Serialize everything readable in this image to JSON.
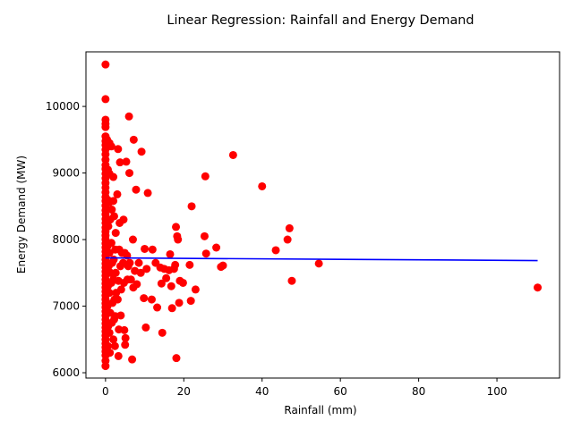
{
  "chart_data": {
    "type": "scatter",
    "title": "Linear Regression: Rainfall and Energy Demand",
    "xlabel": "Rainfall (mm)",
    "ylabel": "Energy Demand (MW)",
    "xlim": [
      -5,
      116
    ],
    "ylim": [
      5920,
      10820
    ],
    "xticks": [
      0,
      20,
      40,
      60,
      80,
      100
    ],
    "yticks": [
      6000,
      7000,
      8000,
      9000,
      10000
    ],
    "grid": false,
    "legend": "none",
    "colors": {
      "points": "#ff0000",
      "regression_line": "#0000ff"
    },
    "regression_line": {
      "x": [
        0,
        110.4
      ],
      "y": [
        7725,
        7685
      ]
    },
    "points": [
      [
        0,
        10630
      ],
      [
        0,
        10110
      ],
      [
        0,
        9800
      ],
      [
        0,
        9740
      ],
      [
        0,
        9690
      ],
      [
        0,
        9550
      ],
      [
        0,
        9480
      ],
      [
        0,
        9420
      ],
      [
        0,
        9350
      ],
      [
        0,
        9280
      ],
      [
        0,
        9200
      ],
      [
        0,
        9120
      ],
      [
        0,
        9060
      ],
      [
        0,
        8990
      ],
      [
        0,
        8920
      ],
      [
        0,
        8850
      ],
      [
        0,
        8780
      ],
      [
        0,
        8710
      ],
      [
        0,
        8640
      ],
      [
        0,
        8580
      ],
      [
        0,
        8510
      ],
      [
        0,
        8440
      ],
      [
        0,
        8380
      ],
      [
        0,
        8310
      ],
      [
        0,
        8250
      ],
      [
        0,
        8180
      ],
      [
        0,
        8120
      ],
      [
        0,
        8060
      ],
      [
        0,
        8000
      ],
      [
        0,
        7940
      ],
      [
        0,
        7880
      ],
      [
        0,
        7820
      ],
      [
        0,
        7760
      ],
      [
        0,
        7700
      ],
      [
        0,
        7640
      ],
      [
        0,
        7580
      ],
      [
        0,
        7520
      ],
      [
        0,
        7460
      ],
      [
        0,
        7400
      ],
      [
        0,
        7340
      ],
      [
        0,
        7280
      ],
      [
        0,
        7220
      ],
      [
        0,
        7160
      ],
      [
        0,
        7100
      ],
      [
        0,
        7040
      ],
      [
        0,
        6980
      ],
      [
        0,
        6920
      ],
      [
        0,
        6860
      ],
      [
        0,
        6800
      ],
      [
        0,
        6740
      ],
      [
        0,
        6680
      ],
      [
        0,
        6620
      ],
      [
        0,
        6560
      ],
      [
        0,
        6500
      ],
      [
        0,
        6440
      ],
      [
        0,
        6380
      ],
      [
        0,
        6320
      ],
      [
        0,
        6260
      ],
      [
        0,
        6180
      ],
      [
        0,
        6100
      ],
      [
        0.4,
        9500
      ],
      [
        0.6,
        9050
      ],
      [
        0.5,
        8600
      ],
      [
        0.7,
        8200
      ],
      [
        0.5,
        7900
      ],
      [
        0.8,
        7600
      ],
      [
        0.6,
        7300
      ],
      [
        0.5,
        7000
      ],
      [
        0.7,
        6700
      ],
      [
        0.6,
        6400
      ],
      [
        1,
        9450
      ],
      [
        1,
        8990
      ],
      [
        1,
        8560
      ],
      [
        1.2,
        8300
      ],
      [
        1,
        7800
      ],
      [
        1.3,
        7500
      ],
      [
        1,
        7200
      ],
      [
        1.2,
        6900
      ],
      [
        1,
        6600
      ],
      [
        1.1,
        6300
      ],
      [
        1.5,
        9400
      ],
      [
        1.6,
        8450
      ],
      [
        1.5,
        7950
      ],
      [
        1.7,
        7650
      ],
      [
        1.5,
        7350
      ],
      [
        1.8,
        7050
      ],
      [
        1.6,
        6750
      ],
      [
        2,
        8940
      ],
      [
        2,
        8580
      ],
      [
        2.2,
        8350
      ],
      [
        2.1,
        7700
      ],
      [
        2,
        7400
      ],
      [
        2.3,
        7100
      ],
      [
        2.2,
        6800
      ],
      [
        2,
        6500
      ],
      [
        2.5,
        7850
      ],
      [
        2.6,
        7500
      ],
      [
        2.7,
        7200
      ],
      [
        2.5,
        6850
      ],
      [
        2.4,
        6400
      ],
      [
        2.6,
        8100
      ],
      [
        3,
        8680
      ],
      [
        3.2,
        9360
      ],
      [
        3.3,
        7380
      ],
      [
        3.1,
        7100
      ],
      [
        3.5,
        7850
      ],
      [
        3.4,
        6650
      ],
      [
        3.6,
        8250
      ],
      [
        3.3,
        6250
      ],
      [
        3.7,
        9160
      ],
      [
        3.8,
        7600
      ],
      [
        3.9,
        6860
      ],
      [
        4.0,
        7250
      ],
      [
        4.2,
        7800
      ],
      [
        4.5,
        7650
      ],
      [
        4.6,
        8300
      ],
      [
        4.7,
        7350
      ],
      [
        4.8,
        6640
      ],
      [
        4.9,
        7800
      ],
      [
        5.0,
        6420
      ],
      [
        5.1,
        6520
      ],
      [
        5.3,
        9170
      ],
      [
        5.5,
        7760
      ],
      [
        5.6,
        7400
      ],
      [
        5.8,
        7600
      ],
      [
        6.0,
        9850
      ],
      [
        6.1,
        9000
      ],
      [
        6.2,
        7650
      ],
      [
        6.5,
        7400
      ],
      [
        6.8,
        6200
      ],
      [
        7.0,
        8000
      ],
      [
        7.1,
        7280
      ],
      [
        7.2,
        9500
      ],
      [
        7.5,
        7530
      ],
      [
        7.8,
        8750
      ],
      [
        8.0,
        7330
      ],
      [
        8.5,
        7650
      ],
      [
        9.0,
        7500
      ],
      [
        9.2,
        9320
      ],
      [
        9.8,
        7120
      ],
      [
        10.0,
        7860
      ],
      [
        10.3,
        6680
      ],
      [
        10.5,
        7560
      ],
      [
        10.8,
        8700
      ],
      [
        11.8,
        7100
      ],
      [
        12.0,
        7850
      ],
      [
        12.8,
        7650
      ],
      [
        13.2,
        6980
      ],
      [
        14.0,
        7580
      ],
      [
        14.3,
        7340
      ],
      [
        14.5,
        6600
      ],
      [
        15.0,
        7560
      ],
      [
        15.5,
        7420
      ],
      [
        16.2,
        7540
      ],
      [
        16.5,
        7780
      ],
      [
        16.8,
        7300
      ],
      [
        17.0,
        6970
      ],
      [
        17.5,
        7560
      ],
      [
        17.8,
        7620
      ],
      [
        18.0,
        8190
      ],
      [
        18.1,
        6220
      ],
      [
        18.3,
        8050
      ],
      [
        18.5,
        8000
      ],
      [
        18.8,
        7050
      ],
      [
        19.0,
        7380
      ],
      [
        19.8,
        7350
      ],
      [
        21.5,
        7620
      ],
      [
        21.8,
        7080
      ],
      [
        22.0,
        8500
      ],
      [
        23.0,
        7250
      ],
      [
        25.3,
        8050
      ],
      [
        25.5,
        8950
      ],
      [
        25.7,
        7790
      ],
      [
        28.3,
        7880
      ],
      [
        29.5,
        7590
      ],
      [
        30.0,
        7610
      ],
      [
        32.6,
        9270
      ],
      [
        40.0,
        8800
      ],
      [
        43.5,
        7840
      ],
      [
        46.5,
        8000
      ],
      [
        47.0,
        8170
      ],
      [
        47.6,
        7380
      ],
      [
        54.5,
        7640
      ],
      [
        110.4,
        7280
      ]
    ]
  }
}
